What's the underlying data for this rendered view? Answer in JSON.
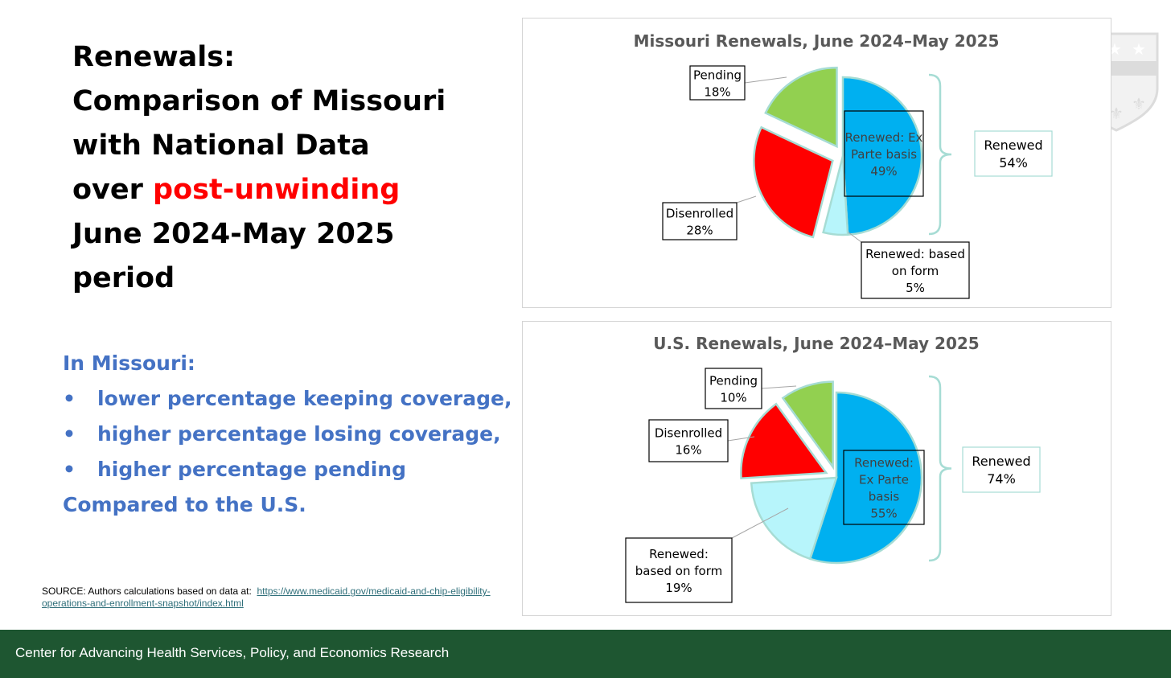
{
  "slide": {
    "title_line1": "Renewals:",
    "title_line2": "Comparison of Missouri",
    "title_line3": "with National Data",
    "title_line4_prefix": "over ",
    "title_line4_highlight": "post-unwinding",
    "title_line5": "June 2024-May 2025",
    "title_line6": "period",
    "highlight_color": "#ff0000"
  },
  "findings": {
    "heading": "In Missouri:",
    "bullet_symbol": "•",
    "items": [
      "lower percentage keeping coverage,",
      "higher percentage losing coverage,",
      "higher percentage pending"
    ],
    "closing": "Compared to the U.S."
  },
  "source": {
    "prefix": "SOURCE: Authors calculations based on data at:",
    "link_text": "https://www.medicaid.gov/medicaid-and-chip-eligibility-operations-and-enrollment-snapshot/index.html"
  },
  "footer": {
    "text": "Center for Advancing Health Services, Policy, and Economics Research",
    "color": "#1e5631"
  },
  "chart_data": [
    {
      "type": "pie",
      "title": "Missouri Renewals, June 2024–May 2025",
      "slices": [
        {
          "name": "Renewed: Ex Parte basis",
          "label_lines": [
            "Renewed: Ex",
            "Parte basis"
          ],
          "value": 49,
          "pct_label": "49%",
          "color": "#00b0f0",
          "exploded": false
        },
        {
          "name": "Renewed: based on form",
          "label_lines": [
            "Renewed: based",
            "on form"
          ],
          "value": 5,
          "pct_label": "5%",
          "color": "#b7f5fb",
          "exploded": false
        },
        {
          "name": "Disenrolled",
          "label_lines": [
            "Disenrolled"
          ],
          "value": 28,
          "pct_label": "28%",
          "color": "#ff0000",
          "exploded": true
        },
        {
          "name": "Pending",
          "label_lines": [
            "Pending"
          ],
          "value": 18,
          "pct_label": "18%",
          "color": "#92d050",
          "exploded": true
        }
      ],
      "bracket": {
        "label": "Renewed",
        "value": "54%"
      }
    },
    {
      "type": "pie",
      "title": "U.S. Renewals, June 2024–May 2025",
      "slices": [
        {
          "name": "Renewed: Ex Parte basis",
          "label_lines": [
            "Renewed:",
            "Ex Parte",
            "basis"
          ],
          "value": 55,
          "pct_label": "55%",
          "color": "#00b0f0",
          "exploded": false
        },
        {
          "name": "Renewed: based on form",
          "label_lines": [
            "Renewed:",
            "based on form"
          ],
          "value": 19,
          "pct_label": "19%",
          "color": "#b7f5fb",
          "exploded": false
        },
        {
          "name": "Disenrolled",
          "label_lines": [
            "Disenrolled"
          ],
          "value": 16,
          "pct_label": "16%",
          "color": "#ff0000",
          "exploded": true
        },
        {
          "name": "Pending",
          "label_lines": [
            "Pending"
          ],
          "value": 10,
          "pct_label": "10%",
          "color": "#92d050",
          "exploded": true
        }
      ],
      "bracket": {
        "label": "Renewed",
        "value": "74%"
      }
    }
  ]
}
